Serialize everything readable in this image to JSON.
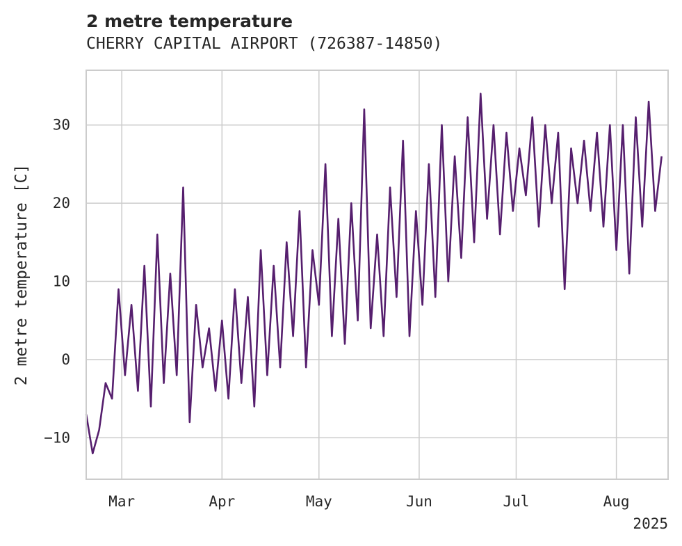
{
  "chart_data": {
    "type": "line",
    "title": "2 metre temperature",
    "subtitle": "CHERRY CAPITAL AIRPORT (726387-14850)",
    "xlabel": "",
    "ylabel": "2 metre temperature [C]",
    "x_range": [
      "2025-02-18",
      "2025-08-17"
    ],
    "ylim": [
      -15.3,
      37.0
    ],
    "x_tick_labels": [
      "Mar",
      "Apr",
      "May",
      "Jun",
      "Jul",
      "Aug"
    ],
    "x_tick_dates": [
      "2025-03-01",
      "2025-04-01",
      "2025-05-01",
      "2025-06-01",
      "2025-07-01",
      "2025-08-01"
    ],
    "x_year_label": "2025",
    "y_ticks": [
      -10,
      0,
      10,
      20,
      30
    ],
    "y_tick_labels": [
      "−10",
      "0",
      "10",
      "20",
      "30"
    ],
    "grid": true,
    "legend": "none",
    "line_color": "#561f6e",
    "series": [
      {
        "x": [
          "2025-02-18",
          "2025-02-20",
          "2025-02-22",
          "2025-02-24",
          "2025-02-26",
          "2025-02-28",
          "2025-03-02",
          "2025-03-04",
          "2025-03-06",
          "2025-03-08",
          "2025-03-10",
          "2025-03-12",
          "2025-03-14",
          "2025-03-16",
          "2025-03-18",
          "2025-03-20",
          "2025-03-22",
          "2025-03-24",
          "2025-03-26",
          "2025-03-28",
          "2025-03-30",
          "2025-04-01",
          "2025-04-03",
          "2025-04-05",
          "2025-04-07",
          "2025-04-09",
          "2025-04-11",
          "2025-04-13",
          "2025-04-15",
          "2025-04-17",
          "2025-04-19",
          "2025-04-21",
          "2025-04-23",
          "2025-04-25",
          "2025-04-27",
          "2025-04-29",
          "2025-05-01",
          "2025-05-03",
          "2025-05-05",
          "2025-05-07",
          "2025-05-09",
          "2025-05-11",
          "2025-05-13",
          "2025-05-15",
          "2025-05-17",
          "2025-05-19",
          "2025-05-21",
          "2025-05-23",
          "2025-05-25",
          "2025-05-27",
          "2025-05-29",
          "2025-05-31",
          "2025-06-02",
          "2025-06-04",
          "2025-06-06",
          "2025-06-08",
          "2025-06-10",
          "2025-06-12",
          "2025-06-14",
          "2025-06-16",
          "2025-06-18",
          "2025-06-20",
          "2025-06-22",
          "2025-06-24",
          "2025-06-26",
          "2025-06-28",
          "2025-06-30",
          "2025-07-02",
          "2025-07-04",
          "2025-07-06",
          "2025-07-08",
          "2025-07-10",
          "2025-07-12",
          "2025-07-14",
          "2025-07-16",
          "2025-07-18",
          "2025-07-20",
          "2025-07-22",
          "2025-07-24",
          "2025-07-26",
          "2025-07-28",
          "2025-07-30",
          "2025-08-01",
          "2025-08-03",
          "2025-08-05",
          "2025-08-07",
          "2025-08-09",
          "2025-08-11",
          "2025-08-13",
          "2025-08-15"
        ],
        "y": [
          -7,
          -12,
          -9,
          -3,
          -5,
          9,
          -2,
          7,
          -4,
          12,
          -6,
          16,
          -3,
          11,
          -2,
          22,
          -8,
          7,
          -1,
          4,
          -4,
          5,
          -5,
          9,
          -3,
          8,
          -6,
          14,
          -2,
          12,
          -1,
          15,
          3,
          19,
          -1,
          14,
          7,
          25,
          3,
          18,
          2,
          20,
          5,
          32,
          4,
          16,
          3,
          22,
          8,
          28,
          3,
          19,
          7,
          25,
          8,
          30,
          10,
          26,
          13,
          31,
          15,
          34,
          18,
          30,
          16,
          29,
          19,
          27,
          21,
          31,
          17,
          30,
          20,
          29,
          9,
          27,
          20,
          28,
          19,
          29,
          17,
          30,
          14,
          30,
          11,
          31,
          17,
          33,
          19,
          26
        ]
      }
    ]
  }
}
